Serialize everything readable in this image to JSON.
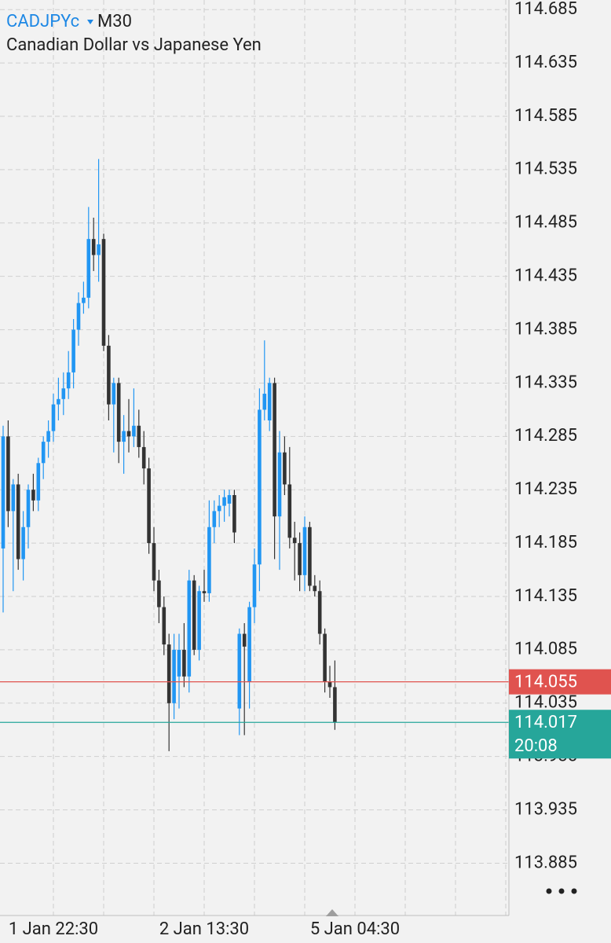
{
  "chart_data": {
    "type": "candlestick",
    "title": "CADJPYc",
    "timeframe": "M30",
    "subtitle": "Canadian Dollar vs Japanese Yen",
    "categories": [
      null,
      null,
      null,
      null,
      null,
      null,
      null,
      null,
      null,
      null,
      "1 Jan 22:30",
      null,
      null,
      null,
      null,
      null,
      null,
      null,
      null,
      null,
      null,
      null,
      null,
      null,
      null,
      null,
      null,
      null,
      null,
      null,
      null,
      null,
      null,
      null,
      null,
      null,
      null,
      null,
      null,
      null,
      "2 Jan 13:30",
      null,
      null,
      null,
      null,
      null,
      null,
      null,
      null,
      null,
      null,
      null,
      null,
      null,
      null,
      null,
      null,
      null,
      null,
      null,
      null,
      null,
      null,
      null,
      null,
      null,
      null,
      null,
      null,
      null,
      "5 Jan 04:30"
    ],
    "open": [
      114.18,
      114.285,
      114.215,
      114.24,
      114.17,
      114.2,
      114.235,
      114.225,
      114.26,
      114.28,
      114.29,
      114.315,
      114.32,
      114.33,
      114.345,
      114.385,
      114.41,
      114.415,
      114.47,
      114.455,
      114.47,
      114.37,
      114.315,
      114.335,
      114.28,
      114.29,
      114.285,
      114.295,
      114.275,
      114.255,
      114.185,
      114.15,
      114.125,
      114.09,
      114.035,
      114.06,
      114.085,
      114.06,
      114.15,
      114.085,
      114.14,
      114.138,
      114.2,
      114.215,
      114.22,
      114.222,
      114.23,
      114.03,
      114.1,
      114.055,
      114.125,
      114.165,
      114.31,
      114.3,
      114.335,
      114.21,
      114.27,
      114.24,
      114.19,
      114.185,
      114.155,
      114.2,
      114.145,
      114.14,
      114.1,
      114.055,
      114.05,
      null,
      null,
      null,
      null
    ],
    "high": [
      114.295,
      114.3,
      114.245,
      114.25,
      114.215,
      114.24,
      114.25,
      114.265,
      114.285,
      114.3,
      114.325,
      114.34,
      114.345,
      114.365,
      114.395,
      114.42,
      114.43,
      114.5,
      114.49,
      114.545,
      114.475,
      114.38,
      114.34,
      114.34,
      114.305,
      114.32,
      114.33,
      114.31,
      114.29,
      114.265,
      114.2,
      114.16,
      114.135,
      114.1,
      114.1,
      114.1,
      114.11,
      114.16,
      114.155,
      114.145,
      114.16,
      114.225,
      114.225,
      114.23,
      114.235,
      114.235,
      114.235,
      114.105,
      114.11,
      114.13,
      114.18,
      114.33,
      114.375,
      114.34,
      114.34,
      114.29,
      114.285,
      114.275,
      114.205,
      114.195,
      114.21,
      114.205,
      114.155,
      114.15,
      114.105,
      114.07,
      114.075,
      null,
      null,
      null,
      null
    ],
    "low": [
      114.12,
      114.2,
      114.14,
      114.16,
      114.15,
      114.18,
      114.215,
      114.215,
      114.245,
      114.265,
      114.28,
      114.3,
      114.305,
      114.32,
      114.33,
      114.37,
      114.4,
      114.405,
      114.44,
      114.43,
      114.365,
      114.3,
      114.27,
      114.26,
      114.25,
      114.27,
      114.275,
      114.265,
      114.24,
      114.175,
      114.14,
      114.11,
      114.08,
      113.99,
      114.02,
      114.03,
      114.05,
      114.045,
      114.08,
      114.075,
      114.13,
      114.13,
      114.185,
      114.2,
      114.205,
      114.21,
      114.185,
      114.005,
      114.005,
      114.03,
      114.11,
      114.14,
      114.3,
      114.29,
      114.17,
      114.16,
      114.23,
      114.18,
      114.15,
      114.14,
      114.14,
      114.14,
      114.135,
      114.09,
      114.045,
      114.04,
      114.01,
      null,
      null,
      null,
      null
    ],
    "close": [
      114.285,
      114.215,
      114.24,
      114.17,
      114.2,
      114.235,
      114.225,
      114.26,
      114.28,
      114.29,
      114.315,
      114.32,
      114.33,
      114.345,
      114.385,
      114.41,
      114.415,
      114.47,
      114.455,
      114.465,
      114.37,
      114.315,
      114.335,
      114.28,
      114.29,
      114.285,
      114.295,
      114.275,
      114.255,
      114.185,
      114.15,
      114.125,
      114.09,
      114.035,
      114.085,
      114.085,
      114.06,
      114.15,
      114.085,
      114.14,
      114.138,
      114.2,
      114.215,
      114.22,
      114.228,
      114.23,
      114.195,
      114.1,
      114.088,
      114.125,
      114.165,
      114.31,
      114.325,
      114.335,
      114.21,
      114.27,
      114.24,
      114.19,
      114.185,
      114.155,
      114.2,
      114.145,
      114.14,
      114.1,
      114.055,
      114.05,
      114.017,
      null,
      null,
      null,
      null
    ],
    "up_color": "#2196f3",
    "down_color": "#333333",
    "ylim": [
      113.836,
      114.694
    ],
    "yticks": [
      114.685,
      114.635,
      114.585,
      114.535,
      114.485,
      114.435,
      114.385,
      114.335,
      114.285,
      114.235,
      114.185,
      114.135,
      114.085,
      114.035,
      113.985,
      113.935,
      113.885
    ],
    "grid": true,
    "price_lines": [
      {
        "value": 114.055,
        "color": "#e0534f"
      },
      {
        "value": 114.017,
        "color": "#26a69a",
        "countdown": "20:08"
      }
    ]
  }
}
